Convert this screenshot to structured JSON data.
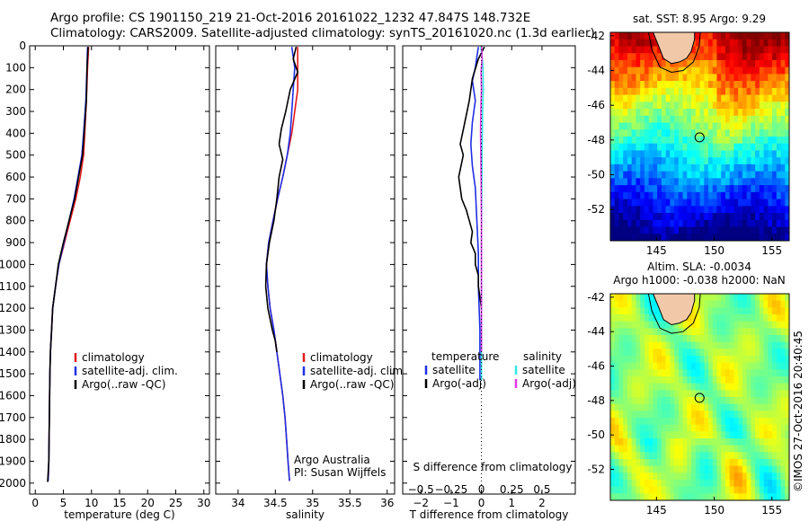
{
  "header": {
    "line1": "Argo profile: CS 1901150_219 21-Oct-2016 20161022_1232 47.847S 148.732E",
    "line2": "Climatology: CARS2009. Satellite-adjusted climatology: synTS_20161020.nc (1.3d earlier)"
  },
  "colors": {
    "climatology": "#e41a1c",
    "satellite": "#1f2fe6",
    "argo": "#000000",
    "sal_satellite": "#33e6e6",
    "sal_argo": "#e633e6"
  },
  "chart_data": [
    {
      "type": "line",
      "id": "temperature",
      "xlabel": "temperature (deg C)",
      "ylabel": "",
      "xlim": [
        -1,
        31
      ],
      "ylim": [
        2050,
        0
      ],
      "x_ticks": [
        0,
        5,
        10,
        15,
        20,
        25,
        30
      ],
      "x_ticklabels": [
        "0",
        "5",
        "10",
        "15",
        "20",
        "25",
        "30"
      ],
      "y_ticks": [
        0,
        100,
        200,
        300,
        400,
        500,
        600,
        700,
        800,
        900,
        1000,
        1100,
        1200,
        1300,
        1400,
        1500,
        1600,
        1700,
        1800,
        1900,
        2000
      ],
      "y_ticklabels": [
        "0",
        "100",
        "200",
        "300",
        "400",
        "500",
        "600",
        "700",
        "800",
        "900",
        "1000",
        "1100",
        "1200",
        "1300",
        "1400",
        "1500",
        "1600",
        "1700",
        "1800",
        "1900",
        "2000"
      ],
      "legend": [
        "climatology",
        "satellite-adj. clim.",
        "Argo(..raw -QC)"
      ],
      "series": [
        {
          "name": "climatology",
          "color": "#e41a1c",
          "points": [
            [
              9.5,
              5
            ],
            [
              9.3,
              100
            ],
            [
              9.1,
              250
            ],
            [
              8.8,
              400
            ],
            [
              8.6,
              500
            ],
            [
              8.0,
              600
            ],
            [
              7.2,
              700
            ],
            [
              6.2,
              800
            ],
            [
              5.2,
              900
            ],
            [
              4.2,
              1000
            ],
            [
              3.6,
              1100
            ],
            [
              3.1,
              1200
            ],
            [
              2.9,
              1300
            ],
            [
              2.7,
              1400
            ],
            [
              2.6,
              1500
            ],
            [
              2.5,
              1700
            ],
            [
              2.4,
              1900
            ],
            [
              2.3,
              1990
            ]
          ]
        },
        {
          "name": "satellite-adj. clim.",
          "color": "#1f2fe6",
          "points": [
            [
              9.3,
              5
            ],
            [
              9.2,
              100
            ],
            [
              9.0,
              250
            ],
            [
              8.6,
              400
            ],
            [
              8.3,
              500
            ],
            [
              7.6,
              600
            ],
            [
              6.9,
              700
            ],
            [
              6.0,
              800
            ],
            [
              5.1,
              900
            ],
            [
              4.2,
              1000
            ],
            [
              3.6,
              1100
            ],
            [
              3.1,
              1200
            ],
            [
              2.9,
              1300
            ],
            [
              2.7,
              1400
            ],
            [
              2.6,
              1500
            ],
            [
              2.5,
              1700
            ],
            [
              2.4,
              1900
            ],
            [
              2.3,
              1990
            ]
          ]
        },
        {
          "name": "Argo(..raw -QC)",
          "color": "#000000",
          "points": [
            [
              9.4,
              5
            ],
            [
              9.2,
              100
            ],
            [
              9.1,
              250
            ],
            [
              8.7,
              400
            ],
            [
              8.4,
              500
            ],
            [
              7.7,
              600
            ],
            [
              7.0,
              700
            ],
            [
              6.0,
              800
            ],
            [
              5.0,
              900
            ],
            [
              4.1,
              1000
            ],
            [
              3.6,
              1100
            ],
            [
              3.1,
              1200
            ],
            [
              2.9,
              1300
            ],
            [
              2.7,
              1400
            ],
            [
              2.6,
              1500
            ],
            [
              2.5,
              1700
            ],
            [
              2.4,
              1900
            ],
            [
              2.2,
              1995
            ]
          ]
        }
      ]
    },
    {
      "type": "line",
      "id": "salinity",
      "xlabel": "salinity",
      "xlim": [
        33.7,
        36.1
      ],
      "ylim": [
        2050,
        0
      ],
      "x_ticks": [
        34,
        34.5,
        35,
        35.5,
        36
      ],
      "x_ticklabels": [
        "34",
        "34.5",
        "35",
        "35.5",
        "36"
      ],
      "legend": [
        "climatology",
        "satellite-adj. clim.",
        "Argo(..raw -QC)"
      ],
      "annotation": [
        "Argo Australia",
        "PI: Susan Wijffels"
      ],
      "series": [
        {
          "name": "climatology",
          "color": "#e41a1c",
          "points": [
            [
              34.8,
              5
            ],
            [
              34.8,
              100
            ],
            [
              34.8,
              200
            ],
            [
              34.76,
              300
            ],
            [
              34.72,
              400
            ],
            [
              34.66,
              500
            ],
            [
              34.6,
              600
            ],
            [
              34.53,
              700
            ],
            [
              34.47,
              800
            ],
            [
              34.41,
              900
            ],
            [
              34.38,
              1000
            ],
            [
              34.4,
              1100
            ],
            [
              34.43,
              1200
            ],
            [
              34.48,
              1300
            ],
            [
              34.52,
              1400
            ],
            [
              34.56,
              1500
            ],
            [
              34.6,
              1600
            ],
            [
              34.63,
              1700
            ],
            [
              34.65,
              1800
            ],
            [
              34.67,
              1900
            ],
            [
              34.69,
              1990
            ]
          ]
        },
        {
          "name": "satellite-adj. clim.",
          "color": "#1f2fe6",
          "points": [
            [
              34.72,
              5
            ],
            [
              34.76,
              100
            ],
            [
              34.74,
              200
            ],
            [
              34.72,
              300
            ],
            [
              34.7,
              400
            ],
            [
              34.66,
              500
            ],
            [
              34.6,
              600
            ],
            [
              34.53,
              700
            ],
            [
              34.47,
              800
            ],
            [
              34.41,
              900
            ],
            [
              34.38,
              1000
            ],
            [
              34.4,
              1100
            ],
            [
              34.43,
              1200
            ],
            [
              34.48,
              1300
            ],
            [
              34.52,
              1400
            ],
            [
              34.56,
              1500
            ],
            [
              34.6,
              1600
            ],
            [
              34.63,
              1700
            ],
            [
              34.65,
              1800
            ],
            [
              34.67,
              1900
            ],
            [
              34.69,
              1990
            ]
          ]
        },
        {
          "name": "Argo(..raw -QC)",
          "color": "#000000",
          "points": [
            [
              34.78,
              5
            ],
            [
              34.74,
              60
            ],
            [
              34.8,
              120
            ],
            [
              34.7,
              200
            ],
            [
              34.64,
              300
            ],
            [
              34.58,
              380
            ],
            [
              34.55,
              450
            ],
            [
              34.6,
              520
            ],
            [
              34.55,
              600
            ],
            [
              34.52,
              700
            ],
            [
              34.48,
              800
            ],
            [
              34.42,
              900
            ],
            [
              34.38,
              1000
            ],
            [
              34.37,
              1100
            ],
            [
              34.4,
              1200
            ],
            [
              34.46,
              1300
            ],
            [
              34.5,
              1350
            ],
            [
              34.52,
              1400
            ]
          ]
        }
      ]
    },
    {
      "type": "line",
      "id": "difference",
      "xlabel": "T difference from climatology",
      "top_axis_label": "S difference from climatology",
      "xlim": [
        -2.6,
        3.1
      ],
      "ylim": [
        2050,
        0
      ],
      "x_ticks": [
        -2,
        -1,
        0,
        1,
        2
      ],
      "x_ticklabels": [
        "−2",
        "−1",
        "0",
        "1",
        "2"
      ],
      "s_ticks": [
        -0.5,
        -0.25,
        0,
        0.25,
        0.5
      ],
      "s_ticklabels": [
        "−0.5",
        "−0.25",
        "0",
        "0.25",
        "0.5"
      ],
      "s_to_t_scale": 4,
      "legend_temperature": {
        "title": "temperature",
        "items": [
          "satellite",
          "Argo(-adj)"
        ]
      },
      "legend_salinity": {
        "title": "salinity",
        "items": [
          "satellite",
          "Argo(-adj)"
        ]
      },
      "series": [
        {
          "name": "temperature satellite",
          "color": "#1f2fe6",
          "points": [
            [
              -0.1,
              5
            ],
            [
              -0.15,
              50
            ],
            [
              -0.2,
              100
            ],
            [
              -0.3,
              160
            ],
            [
              -0.2,
              250
            ],
            [
              -0.3,
              350
            ],
            [
              -0.35,
              450
            ],
            [
              -0.3,
              550
            ],
            [
              -0.2,
              650
            ],
            [
              -0.15,
              800
            ],
            [
              -0.1,
              950
            ],
            [
              -0.1,
              1100
            ],
            [
              -0.05,
              1300
            ],
            [
              -0.05,
              1500
            ],
            [
              -0.05,
              1530
            ]
          ]
        },
        {
          "name": "temperature Argo(-adj)",
          "color": "#000000",
          "points": [
            [
              0.1,
              5
            ],
            [
              -0.1,
              60
            ],
            [
              -0.3,
              150
            ],
            [
              -0.4,
              250
            ],
            [
              -0.55,
              350
            ],
            [
              -0.7,
              450
            ],
            [
              -0.6,
              500
            ],
            [
              -0.75,
              600
            ],
            [
              -0.65,
              700
            ],
            [
              -0.5,
              750
            ],
            [
              -0.4,
              800
            ],
            [
              -0.3,
              850
            ],
            [
              -0.35,
              900
            ],
            [
              -0.2,
              950
            ],
            [
              -0.2,
              1000
            ],
            [
              -0.1,
              1050
            ],
            [
              -0.1,
              1100
            ],
            [
              -0.05,
              1150
            ],
            [
              0.0,
              1200
            ]
          ]
        },
        {
          "name": "salinity satellite",
          "color": "#33e6e6",
          "points": [
            [
              -0.02,
              5
            ],
            [
              0.03,
              60
            ],
            [
              0.05,
              100
            ],
            [
              0.06,
              200
            ],
            [
              0.04,
              300
            ],
            [
              0.03,
              400
            ],
            [
              0.02,
              500
            ],
            [
              0.01,
              700
            ],
            [
              0.0,
              900
            ],
            [
              0.0,
              1200
            ],
            [
              0.0,
              1500
            ],
            [
              0.0,
              1530
            ]
          ]
        },
        {
          "name": "salinity Argo(-adj)",
          "color": "#e633e6",
          "points": [
            [
              0.01,
              5
            ],
            [
              0.02,
              60
            ],
            [
              -0.01,
              120
            ],
            [
              0.0,
              200
            ],
            [
              -0.02,
              300
            ],
            [
              -0.03,
              400
            ],
            [
              -0.02,
              500
            ],
            [
              -0.01,
              600
            ],
            [
              0.0,
              800
            ],
            [
              0.0,
              1000
            ],
            [
              0.0,
              1200
            ],
            [
              0.0,
              1400
            ]
          ]
        }
      ]
    },
    {
      "type": "heatmap",
      "id": "sst-map",
      "title": "sat. SST: 8.95  Argo: 9.29",
      "xlim": [
        141,
        156.5
      ],
      "ylim": [
        -53.8,
        -41.8
      ],
      "x_ticks": [
        145,
        150,
        155
      ],
      "x_ticklabels": [
        "145",
        "150",
        "155"
      ],
      "y_ticks": [
        -42,
        -44,
        -46,
        -48,
        -50,
        -52
      ],
      "y_ticklabels": [
        "-42",
        "-44",
        "-46",
        "-48",
        "-50",
        "-52"
      ],
      "marker": {
        "lon": 148.732,
        "lat": -47.847
      }
    },
    {
      "type": "heatmap",
      "id": "sla-map",
      "title": "Altim. SLA: -0.0034",
      "subtitle": "Argo h1000: -0.038 h2000: NaN",
      "xlim": [
        141,
        156.5
      ],
      "ylim": [
        -53.8,
        -41.8
      ],
      "x_ticks": [
        145,
        150,
        155
      ],
      "x_ticklabels": [
        "145",
        "150",
        "155"
      ],
      "y_ticks": [
        -42,
        -44,
        -46,
        -48,
        -50,
        -52
      ],
      "y_ticklabels": [
        "-42",
        "-44",
        "-46",
        "-48",
        "-50",
        "-52"
      ],
      "marker": {
        "lon": 148.732,
        "lat": -47.847
      },
      "credit": "©IMOS 27-Oct-2016 20:40:45"
    }
  ]
}
